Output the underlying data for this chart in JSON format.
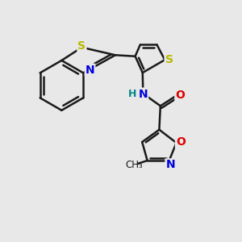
{
  "background_color": "#e8e8e8",
  "bond_color": "#1a1a1a",
  "bond_width": 1.8,
  "S_color": "#b8b800",
  "N_color": "#0000dd",
  "O_color": "#dd0000",
  "H_color": "#008888",
  "figsize": [
    3.0,
    3.0
  ],
  "dpi": 100,
  "xlim": [
    0,
    10
  ],
  "ylim": [
    0,
    10
  ]
}
